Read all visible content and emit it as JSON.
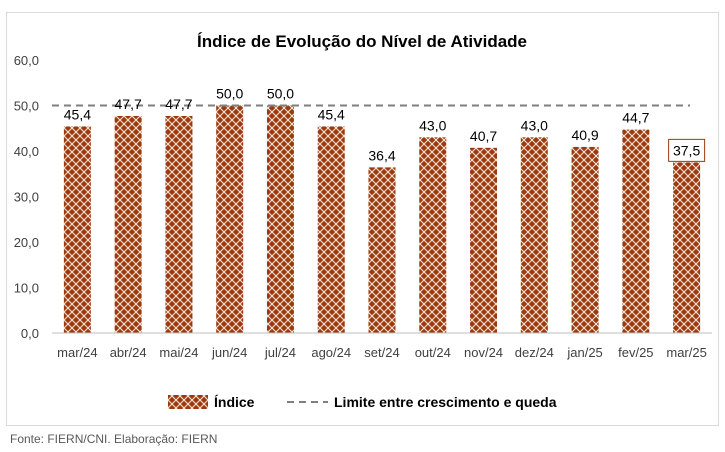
{
  "chart_data": {
    "type": "bar",
    "title": "Índice de Evolução do Nível de Atividade",
    "categories": [
      "mar/24",
      "abr/24",
      "mai/24",
      "jun/24",
      "jul/24",
      "ago/24",
      "set/24",
      "out/24",
      "nov/24",
      "dez/24",
      "jan/25",
      "fev/25",
      "mar/25"
    ],
    "series": [
      {
        "name": "Índice",
        "values": [
          45.4,
          47.7,
          47.7,
          50.0,
          50.0,
          45.4,
          36.4,
          43.0,
          40.7,
          43.0,
          40.9,
          44.7,
          37.5
        ]
      }
    ],
    "value_labels": [
      "45,4",
      "47,7",
      "47,7",
      "50,0",
      "50,0",
      "45,4",
      "36,4",
      "43,0",
      "40,7",
      "43,0",
      "40,9",
      "44,7",
      "37,5"
    ],
    "reference_line": {
      "name": "Limite entre crescimento e queda",
      "value": 50
    },
    "ylim": [
      0,
      60
    ],
    "y_ticks": [
      0,
      10,
      20,
      30,
      40,
      50,
      60
    ],
    "y_tick_labels": [
      "0,0",
      "10,0",
      "20,0",
      "30,0",
      "40,0",
      "50,0",
      "60,0"
    ],
    "grid": false,
    "legend_position": "bottom",
    "highlighted_label_index": 12,
    "colors": {
      "bar_fill": "#9c3a0e",
      "bar_pattern": "#f5e6dc",
      "reference_line": "#7f7f7f",
      "axis": "#bfbfbf"
    }
  },
  "source_note": "Fonte: FIERN/CNI. Elaboração: FIERN"
}
